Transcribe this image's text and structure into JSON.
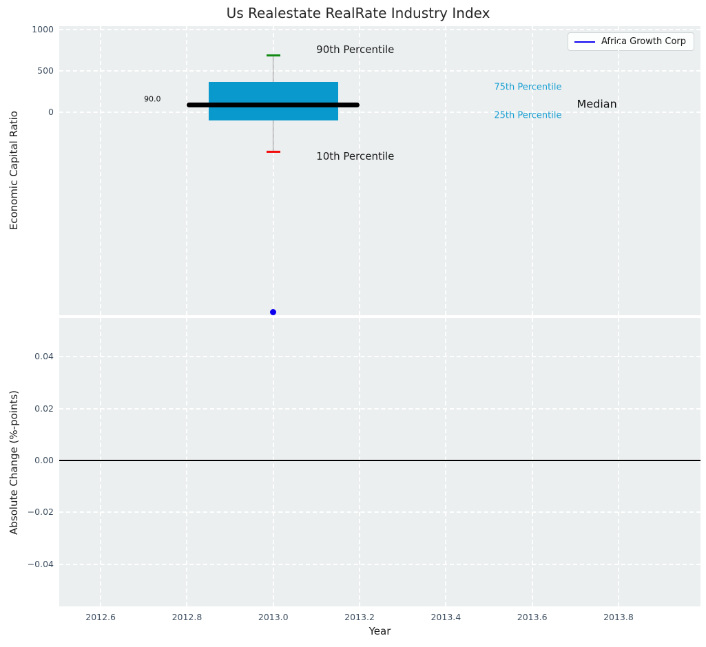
{
  "figure": {
    "title": "Us Realestate RealRate Industry Index",
    "xlabel": "Year",
    "colors": {
      "plot_bg": "#ebeff0",
      "grid": "#ffffff",
      "box_fill": "#0999cc",
      "cyan_text": "#189fd2",
      "green": "#128a12",
      "red": "#f20c0c",
      "blue": "#0d00ee",
      "tick_text": "#3d4e60",
      "text": "#1c1c1c",
      "whisker": "#8a8a8a",
      "black": "#000000"
    },
    "legend": {
      "label": "Africa Growth Corp"
    }
  },
  "chart_data": [
    {
      "type": "boxplot",
      "panel": "top",
      "title": "Us Realestate RealRate Industry Index",
      "ylabel": "Economic Capital Ratio",
      "xlim": [
        2012.504,
        2013.99
      ],
      "ylim": [
        -2458,
        1042
      ],
      "grid": true,
      "xticks": [
        {
          "v": 2012.6,
          "label": "2012.6"
        },
        {
          "v": 2012.8,
          "label": "2012.8"
        },
        {
          "v": 2013.0,
          "label": "2013.0"
        },
        {
          "v": 2013.2,
          "label": "2013.2"
        },
        {
          "v": 2013.4,
          "label": "2013.4"
        },
        {
          "v": 2013.6,
          "label": "2013.6"
        },
        {
          "v": 2013.8,
          "label": "2013.8"
        }
      ],
      "show_xtick_labels": false,
      "yticks": [
        {
          "v": 0,
          "label": "0"
        },
        {
          "v": 500,
          "label": "500"
        },
        {
          "v": 1000,
          "label": "1000"
        }
      ],
      "box": {
        "x_center": 2013.0,
        "box_left": 2012.85,
        "box_right": 2013.15,
        "p10": -475,
        "p25": -100,
        "median": 90.0,
        "p75": 370,
        "p90": 685,
        "median_line_left": 2012.8,
        "median_line_right": 2013.2,
        "cap_half_width": 0.016
      },
      "point": {
        "series": "Africa Growth Corp",
        "x": 2013.0,
        "y": -2420,
        "diameter": 9
      },
      "annotations": [
        {
          "id": "p90-label",
          "text": "90th Percentile",
          "x": 2013.19,
          "y": 760,
          "color": "#1c1c1c",
          "size": 15
        },
        {
          "id": "p10-label",
          "text": "10th Percentile",
          "x": 2013.19,
          "y": -533,
          "color": "#1c1c1c",
          "size": 15
        },
        {
          "id": "p75-label",
          "text": "75th Percentile",
          "x": 2013.59,
          "y": 300,
          "color": "#189fd2",
          "size": 13
        },
        {
          "id": "p25-label",
          "text": "25th Percentile",
          "x": 2013.59,
          "y": -42,
          "color": "#189fd2",
          "size": 13
        },
        {
          "id": "median-label",
          "text": "Median",
          "x": 2013.75,
          "y": 100,
          "color": "#0d0d0d",
          "size": 16
        },
        {
          "id": "median-value",
          "text": "90.0",
          "x": 2012.72,
          "y": 160,
          "color": "#0d0d0d",
          "size": 11
        }
      ],
      "legend": {
        "label": "Africa Growth Corp",
        "position": "upper right"
      }
    },
    {
      "type": "line",
      "panel": "bottom",
      "ylabel": "Absolute Change (%-points)",
      "xlabel": "Year",
      "xlim": [
        2012.504,
        2013.99
      ],
      "ylim": [
        -0.0563,
        0.055
      ],
      "grid": true,
      "xticks": [
        {
          "v": 2012.6,
          "label": "2012.6"
        },
        {
          "v": 2012.8,
          "label": "2012.8"
        },
        {
          "v": 2013.0,
          "label": "2013.0"
        },
        {
          "v": 2013.2,
          "label": "2013.2"
        },
        {
          "v": 2013.4,
          "label": "2013.4"
        },
        {
          "v": 2013.6,
          "label": "2013.6"
        },
        {
          "v": 2013.8,
          "label": "2013.8"
        }
      ],
      "show_xtick_labels": true,
      "yticks": [
        {
          "v": -0.04,
          "label": "−0.04"
        },
        {
          "v": -0.02,
          "label": "−0.02"
        },
        {
          "v": 0.0,
          "label": "0.00"
        },
        {
          "v": 0.02,
          "label": "0.02"
        },
        {
          "v": 0.04,
          "label": "0.04"
        }
      ],
      "zero_line": 0.0
    }
  ]
}
